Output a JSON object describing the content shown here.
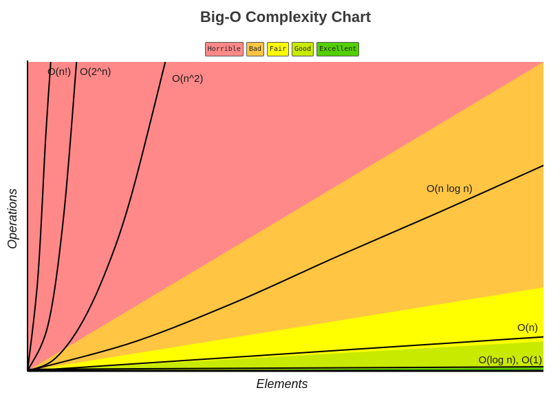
{
  "chart_data": {
    "type": "line",
    "title": "Big-O Complexity Chart",
    "xlabel": "Elements",
    "ylabel": "Operations",
    "legend_position": "top-center",
    "legend": [
      {
        "label": "Horrible",
        "color": "#ff8989"
      },
      {
        "label": "Bad",
        "color": "#ffc543"
      },
      {
        "label": "Fair",
        "color": "#ffff00"
      },
      {
        "label": "Good",
        "color": "#c8ea00"
      },
      {
        "label": "Excellent",
        "color": "#53d000"
      }
    ],
    "xlim": [
      0,
      100
    ],
    "ylim": [
      0,
      100
    ],
    "regions": [
      {
        "label": "Horrible",
        "color": "#ff8989",
        "upper": [
          [
            0,
            100
          ],
          [
            100,
            100
          ]
        ]
      },
      {
        "label": "Bad",
        "color": "#ffc543",
        "upper": [
          [
            0,
            0
          ],
          [
            100,
            100
          ]
        ]
      },
      {
        "label": "Fair",
        "color": "#ffff00",
        "upper": [
          [
            0,
            0
          ],
          [
            100,
            27
          ]
        ]
      },
      {
        "label": "Good",
        "color": "#c8ea00",
        "upper": [
          [
            0,
            0
          ],
          [
            100,
            9.5
          ]
        ]
      },
      {
        "label": "Excellent",
        "color": "#53d000",
        "upper": [
          [
            0,
            0
          ],
          [
            100,
            1
          ]
        ]
      }
    ],
    "series": [
      {
        "name": "O(n!)",
        "x": [
          0,
          2,
          3.5,
          4.5
        ],
        "y": [
          0,
          30,
          75,
          100
        ]
      },
      {
        "name": "O(2^n)",
        "x": [
          0,
          4,
          7,
          9.5
        ],
        "y": [
          0,
          15,
          50,
          100
        ]
      },
      {
        "name": "O(n^2)",
        "x": [
          0,
          5,
          10,
          15,
          20,
          26.7
        ],
        "y": [
          0,
          3.5,
          14,
          31.5,
          56,
          100
        ]
      },
      {
        "name": "O(n log n)",
        "x": [
          0,
          20,
          40,
          60,
          80,
          100
        ],
        "y": [
          0,
          9,
          22,
          37,
          51.5,
          66.5
        ]
      },
      {
        "name": "O(n)",
        "x": [
          0,
          100
        ],
        "y": [
          0,
          11
        ]
      },
      {
        "name": "O(log n), O(1)",
        "x": [
          0,
          100
        ],
        "y": [
          0.5,
          1.3
        ]
      }
    ]
  }
}
